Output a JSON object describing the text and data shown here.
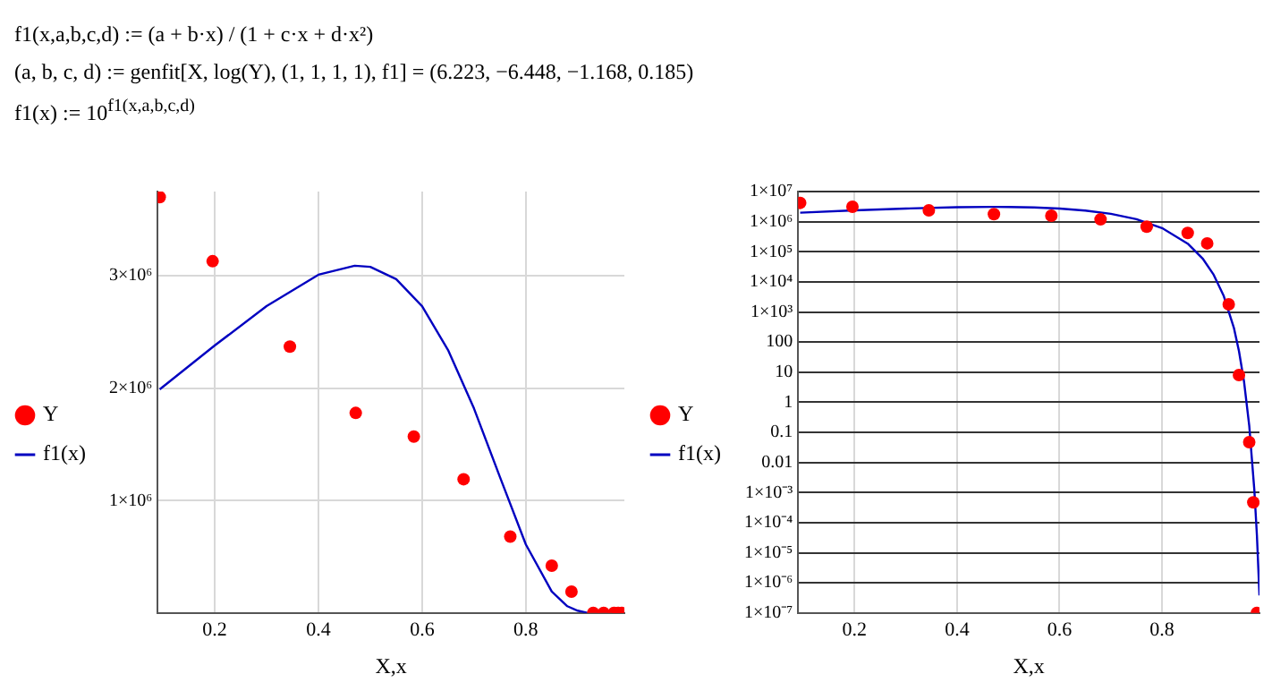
{
  "chart_data": [
    {
      "type": "scatter",
      "xlabel": "X,x",
      "xlim": [
        0.09,
        0.99
      ],
      "xticks": [
        0.2,
        0.4,
        0.6,
        0.8
      ],
      "ylim": [
        0,
        3750000
      ],
      "yticks": [
        {
          "value": 1000000,
          "label": "1×10⁶"
        },
        {
          "value": 2000000,
          "label": "2×10⁶"
        },
        {
          "value": 3000000,
          "label": "3×10⁶"
        }
      ],
      "grid": true,
      "legend": "left",
      "annotations": [
        "f1(x,a,b,c,d) := (a + b·x) / (1 + c·x + d·x²)",
        "(a, b, c, d) := genfit[X, log(Y), (1, 1, 1, 1), f1] = (6.223, −6.448, −1.168, 0.185)",
        "f1(x) := 10$^{f1(x,a,b,c,d)}$"
      ],
      "series": [
        {
          "name": "Y",
          "type": "scatter",
          "marker": "circle",
          "color": "#ff0000",
          "x": [
            0.094,
            0.196,
            0.345,
            0.472,
            0.584,
            0.68,
            0.77,
            0.85,
            0.888,
            0.93,
            0.95,
            0.97,
            0.978,
            0.985
          ],
          "values": [
            3700000,
            3130000,
            2370000,
            1780000,
            1570000,
            1190000,
            680000,
            420000,
            190000,
            0,
            0,
            0,
            0,
            0
          ]
        },
        {
          "name": "f1(x)",
          "type": "line",
          "marker": "none",
          "line_style": "solid",
          "color": "#0000c0",
          "x": [
            0.094,
            0.2,
            0.3,
            0.4,
            0.47,
            0.5,
            0.55,
            0.6,
            0.65,
            0.7,
            0.75,
            0.8,
            0.85,
            0.88,
            0.9,
            0.92
          ],
          "values": [
            1990000,
            2380000,
            2730000,
            3010000,
            3090000,
            3080000,
            2970000,
            2730000,
            2340000,
            1820000,
            1210000,
            610000,
            190000,
            60000,
            20000,
            0
          ]
        }
      ]
    },
    {
      "type": "scatter",
      "xlabel": "X,x",
      "xlim": [
        0.09,
        0.99
      ],
      "xticks": [
        0.2,
        0.4,
        0.6,
        0.8
      ],
      "ylim": [
        1e-07,
        10000000.0
      ],
      "log": "y",
      "yticks": [
        {
          "value": 1e-07,
          "label": "1×10⁻⁷"
        },
        {
          "value": 1e-06,
          "label": "1×10⁻⁶"
        },
        {
          "value": 1e-05,
          "label": "1×10⁻⁵"
        },
        {
          "value": 0.0001,
          "label": "1×10⁻⁴"
        },
        {
          "value": 0.001,
          "label": "1×10⁻³"
        },
        0.01,
        0.1,
        1,
        10,
        100,
        {
          "value": 1000,
          "label": "1×10³"
        },
        {
          "value": 10000,
          "label": "1×10⁴"
        },
        {
          "value": 100000,
          "label": "1×10⁵"
        },
        {
          "value": 1000000,
          "label": "1×10⁶"
        },
        {
          "value": 10000000,
          "label": "1×10⁷"
        }
      ],
      "grid": true,
      "legend": "left",
      "series": [
        {
          "name": "Y",
          "type": "scatter",
          "marker": "circle",
          "color": "#ff0000",
          "x": [
            0.094,
            0.196,
            0.345,
            0.472,
            0.584,
            0.68,
            0.77,
            0.85,
            0.888,
            0.93,
            0.95,
            0.97,
            0.978,
            0.985
          ],
          "values": [
            4200000,
            3130000,
            2370000,
            1780000,
            1570000,
            1190000,
            680000,
            420000,
            190000,
            1800,
            8,
            0.047,
            0.00047,
            1e-07
          ]
        },
        {
          "name": "f1(x)",
          "type": "line",
          "marker": "none",
          "line_style": "solid",
          "color": "#0000c0",
          "x": [
            0.094,
            0.2,
            0.3,
            0.4,
            0.47,
            0.5,
            0.55,
            0.6,
            0.65,
            0.7,
            0.75,
            0.8,
            0.85,
            0.88,
            0.9,
            0.92,
            0.94,
            0.95,
            0.96,
            0.97,
            0.98,
            0.985,
            0.99
          ],
          "values": [
            1990000,
            2380000,
            2730000,
            3010000,
            3090000,
            3080000,
            2970000,
            2730000,
            2340000,
            1820000,
            1210000,
            610000,
            186000,
            57000,
            18000,
            3500,
            300,
            50,
            4.7,
            0.17,
            0.0012,
            3.8e-05,
            3.8e-07
          ]
        }
      ]
    }
  ]
}
